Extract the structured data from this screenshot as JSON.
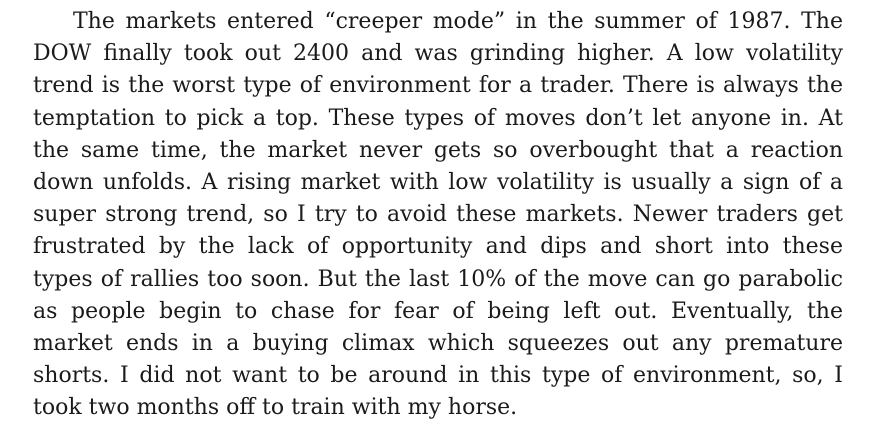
{
  "paragraph": {
    "lines": [
      "The markets entered “creeper mode” in the summer of 1987. The",
      "DOW finally took out 2400 and was grinding higher. A low volatility",
      "trend is the worst type of environment for a trader. There is always the",
      "temptation to pick a top. These types of moves don’t let anyone in. At",
      "the same time, the market never gets so overbought that a reaction",
      "down unfolds. A rising market with low volatility is usually a sign of a",
      "super strong trend, so I try to avoid these markets. Newer traders get",
      "frustrated by the lack of opportunity and dips and short into these",
      "types of rallies too soon. But the last 10% of the move can go parabolic",
      "as people begin to chase for fear of being left out. Eventually, the",
      "market ends in a buying climax which squeezes out any premature",
      "shorts. I did not want to be around in this type of environment, so, I",
      "took two months off to train with my horse."
    ]
  }
}
